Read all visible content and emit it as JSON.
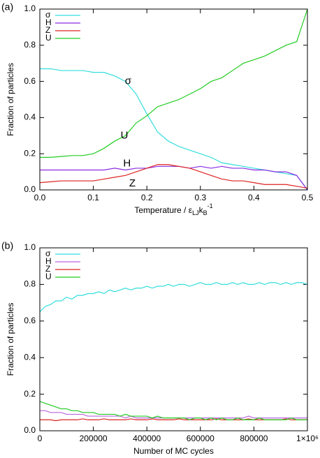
{
  "chart_data": [
    {
      "type": "line",
      "panel_label": "(a)",
      "ylabel": "Fraction of particles",
      "xlabel": [
        "Temperature / ε",
        "LJ",
        "k",
        "B",
        "-1"
      ],
      "legend": "top-left",
      "annotations": [
        "σ",
        "U",
        "H",
        "Z"
      ],
      "xlim": [
        0,
        0.5
      ],
      "ylim": [
        0,
        1
      ],
      "xticks": [
        {
          "value": 0,
          "label": "0.0"
        },
        0.1,
        0.2,
        0.3,
        0.4,
        0.5
      ],
      "yticks": [
        {
          "value": 0,
          "label": "0.0"
        },
        0.2,
        0.4,
        0.6,
        0.8,
        {
          "value": 1,
          "label": "1.0"
        }
      ],
      "x": [
        0,
        0.02,
        0.04,
        0.06,
        0.08,
        0.1,
        0.12,
        0.14,
        0.16,
        0.18,
        0.2,
        0.22,
        0.24,
        0.26,
        0.28,
        0.3,
        0.32,
        0.34,
        0.36,
        0.38,
        0.4,
        0.42,
        0.44,
        0.46,
        0.48,
        0.5
      ],
      "series": [
        {
          "name": "σ",
          "color": "#33dddd",
          "values": [
            0.67,
            0.67,
            0.66,
            0.66,
            0.66,
            0.65,
            0.65,
            0.63,
            0.6,
            0.53,
            0.42,
            0.32,
            0.27,
            0.24,
            0.22,
            0.2,
            0.18,
            0.15,
            0.14,
            0.13,
            0.12,
            0.11,
            0.1,
            0.09,
            0.08,
            0.0
          ]
        },
        {
          "name": "H",
          "color": "#8a2be2",
          "values": [
            0.11,
            0.11,
            0.11,
            0.11,
            0.11,
            0.11,
            0.11,
            0.12,
            0.11,
            0.12,
            0.12,
            0.13,
            0.13,
            0.13,
            0.12,
            0.13,
            0.12,
            0.13,
            0.12,
            0.12,
            0.11,
            0.11,
            0.1,
            0.1,
            0.08,
            0.0
          ]
        },
        {
          "name": "Z",
          "color": "#dd2222",
          "values": [
            0.04,
            0.045,
            0.05,
            0.05,
            0.05,
            0.05,
            0.06,
            0.07,
            0.08,
            0.1,
            0.12,
            0.14,
            0.14,
            0.13,
            0.12,
            0.1,
            0.08,
            0.06,
            0.05,
            0.05,
            0.04,
            0.03,
            0.03,
            0.03,
            0.02,
            0.01
          ]
        },
        {
          "name": "U",
          "color": "#22cc22",
          "values": [
            0.18,
            0.18,
            0.185,
            0.19,
            0.19,
            0.2,
            0.23,
            0.27,
            0.3,
            0.37,
            0.41,
            0.46,
            0.48,
            0.5,
            0.53,
            0.56,
            0.6,
            0.62,
            0.66,
            0.7,
            0.72,
            0.74,
            0.77,
            0.8,
            0.82,
            1.0
          ]
        }
      ]
    },
    {
      "type": "line",
      "panel_label": "(b)",
      "ylabel": "Fraction of particles",
      "xlabel": [
        "Number of MC cycles"
      ],
      "legend": "top-left",
      "xlim": [
        0,
        1000000
      ],
      "ylim": [
        0,
        1
      ],
      "xticks": [
        0,
        200000,
        400000,
        600000,
        800000,
        {
          "value": 1000000,
          "label": "1×10⁶"
        }
      ],
      "yticks": [
        {
          "value": 0,
          "label": "0.0"
        },
        0.2,
        0.4,
        0.6,
        0.8,
        {
          "value": 1,
          "label": "1.0"
        }
      ],
      "x": [
        0,
        20000,
        40000,
        60000,
        80000,
        100000,
        120000,
        140000,
        160000,
        180000,
        200000,
        220000,
        240000,
        260000,
        280000,
        300000,
        320000,
        340000,
        360000,
        380000,
        400000,
        420000,
        440000,
        460000,
        480000,
        500000,
        520000,
        540000,
        560000,
        580000,
        600000,
        620000,
        640000,
        660000,
        680000,
        700000,
        720000,
        740000,
        760000,
        780000,
        800000,
        820000,
        840000,
        860000,
        880000,
        900000,
        920000,
        940000,
        960000,
        980000,
        1000000
      ],
      "series": [
        {
          "name": "σ",
          "color": "#33dddd",
          "values": [
            0.65,
            0.68,
            0.69,
            0.71,
            0.71,
            0.73,
            0.72,
            0.74,
            0.74,
            0.75,
            0.75,
            0.76,
            0.75,
            0.77,
            0.76,
            0.77,
            0.78,
            0.77,
            0.78,
            0.78,
            0.79,
            0.78,
            0.79,
            0.79,
            0.8,
            0.79,
            0.8,
            0.8,
            0.79,
            0.8,
            0.81,
            0.8,
            0.8,
            0.81,
            0.8,
            0.8,
            0.81,
            0.8,
            0.81,
            0.8,
            0.8,
            0.81,
            0.8,
            0.81,
            0.81,
            0.8,
            0.81,
            0.8,
            0.81,
            0.81,
            0.8
          ]
        },
        {
          "name": "H",
          "color": "#bb66dd",
          "values": [
            0.11,
            0.11,
            0.1,
            0.1,
            0.1,
            0.09,
            0.09,
            0.09,
            0.09,
            0.08,
            0.08,
            0.08,
            0.08,
            0.08,
            0.08,
            0.08,
            0.07,
            0.08,
            0.07,
            0.07,
            0.07,
            0.07,
            0.07,
            0.07,
            0.07,
            0.07,
            0.07,
            0.07,
            0.07,
            0.07,
            0.07,
            0.07,
            0.07,
            0.07,
            0.07,
            0.07,
            0.07,
            0.07,
            0.07,
            0.08,
            0.07,
            0.07,
            0.07,
            0.07,
            0.07,
            0.07,
            0.07,
            0.07,
            0.07,
            0.07,
            0.07
          ]
        },
        {
          "name": "Z",
          "color": "#dd2222",
          "values": [
            0.06,
            0.06,
            0.06,
            0.055,
            0.06,
            0.06,
            0.06,
            0.06,
            0.065,
            0.06,
            0.06,
            0.06,
            0.065,
            0.06,
            0.06,
            0.06,
            0.06,
            0.065,
            0.06,
            0.06,
            0.06,
            0.065,
            0.06,
            0.06,
            0.06,
            0.06,
            0.065,
            0.06,
            0.06,
            0.06,
            0.06,
            0.06,
            0.06,
            0.065,
            0.06,
            0.06,
            0.06,
            0.06,
            0.06,
            0.065,
            0.06,
            0.06,
            0.06,
            0.06,
            0.06,
            0.06,
            0.065,
            0.06,
            0.06,
            0.06,
            0.06
          ]
        },
        {
          "name": "U",
          "color": "#22cc22",
          "values": [
            0.16,
            0.15,
            0.14,
            0.13,
            0.12,
            0.12,
            0.11,
            0.11,
            0.1,
            0.1,
            0.1,
            0.09,
            0.09,
            0.09,
            0.09,
            0.08,
            0.09,
            0.08,
            0.08,
            0.08,
            0.08,
            0.07,
            0.08,
            0.07,
            0.07,
            0.07,
            0.07,
            0.07,
            0.06,
            0.07,
            0.07,
            0.06,
            0.07,
            0.06,
            0.07,
            0.06,
            0.06,
            0.07,
            0.06,
            0.06,
            0.06,
            0.07,
            0.06,
            0.06,
            0.06,
            0.06,
            0.06,
            0.07,
            0.06,
            0.06,
            0.06
          ]
        }
      ]
    }
  ]
}
